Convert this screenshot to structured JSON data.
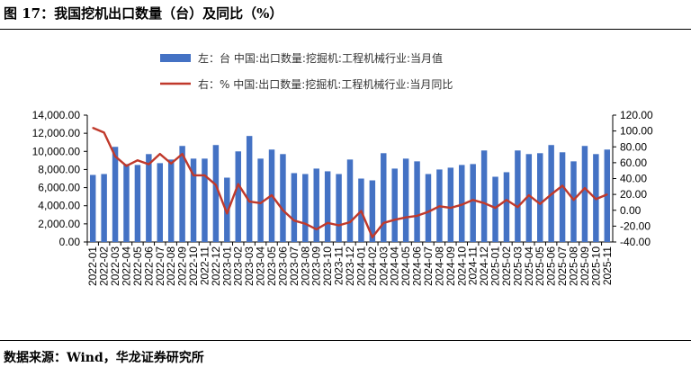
{
  "figure": {
    "title": "图 17：我国挖机出口数量（台）及同比（%）",
    "source": "数据来源：Wind，华龙证券研究所"
  },
  "colors": {
    "bar": "#4472C4",
    "line": "#C0392B",
    "axis": "#000000"
  },
  "chart_data": {
    "type": "bar",
    "legend_position": "top",
    "grid": false,
    "categories": [
      "2022-01",
      "2022-02",
      "2022-03",
      "2022-04",
      "2022-05",
      "2022-06",
      "2022-07",
      "2022-08",
      "2022-09",
      "2022-10",
      "2022-11",
      "2022-12",
      "2023-01",
      "2023-02",
      "2023-03",
      "2023-04",
      "2023-05",
      "2023-06",
      "2023-07",
      "2023-08",
      "2023-09",
      "2023-10",
      "2023-11",
      "2023-12",
      "2024-01",
      "2024-02",
      "2024-03",
      "2024-04",
      "2024-05",
      "2024-06",
      "2024-07",
      "2024-08",
      "2024-09",
      "2024-10",
      "2024-11",
      "2024-12",
      "2025-01",
      "2025-02",
      "2025-03",
      "2025-04",
      "2025-05",
      "2025-06",
      "2025-07",
      "2025-08",
      "2025-09",
      "2025-10",
      "2025-11"
    ],
    "left_axis": {
      "ylim": [
        0,
        14000
      ],
      "ticks": [
        "14,000.00",
        "12,000.00",
        "10,000.00",
        "8,000.00",
        "6,000.00",
        "4,000.00",
        "2,000.00",
        "0.00"
      ]
    },
    "right_axis": {
      "ylim": [
        -40,
        120
      ],
      "ticks": [
        "120.00",
        "100.00",
        "80.00",
        "60.00",
        "40.00",
        "20.00",
        "0.00",
        "-20.00",
        "-40.00"
      ]
    },
    "series": [
      {
        "name": "左：台 中国:出口数量:挖掘机:工程机械行业:当月值",
        "type": "bar",
        "axis": "left",
        "values": [
          7400,
          7500,
          10500,
          8600,
          8500,
          9700,
          8700,
          9100,
          10600,
          9200,
          9200,
          10700,
          7100,
          10000,
          11700,
          9200,
          10200,
          9700,
          7600,
          7500,
          8100,
          7800,
          7500,
          9100,
          7000,
          6800,
          9800,
          8100,
          9200,
          8900,
          7500,
          8000,
          8200,
          8500,
          8600,
          10100,
          7200,
          7700,
          10100,
          9700,
          9800,
          10700,
          9900,
          8900,
          10600,
          9700,
          10200
        ]
      },
      {
        "name": "右：% 中国:出口数量:挖掘机:工程机械行业:当月同比",
        "type": "line",
        "axis": "right",
        "values": [
          104,
          98,
          68,
          56,
          63,
          58,
          71,
          59,
          71,
          44,
          44,
          32,
          -4,
          33,
          11,
          9,
          19,
          0,
          -13,
          -17,
          -24,
          -16,
          -19,
          -15,
          -1,
          -34,
          -16,
          -12,
          -9,
          -7,
          -2,
          5,
          3,
          7,
          13,
          9,
          3,
          13,
          4,
          19,
          8,
          20,
          31,
          13,
          28,
          14,
          20
        ]
      }
    ]
  }
}
